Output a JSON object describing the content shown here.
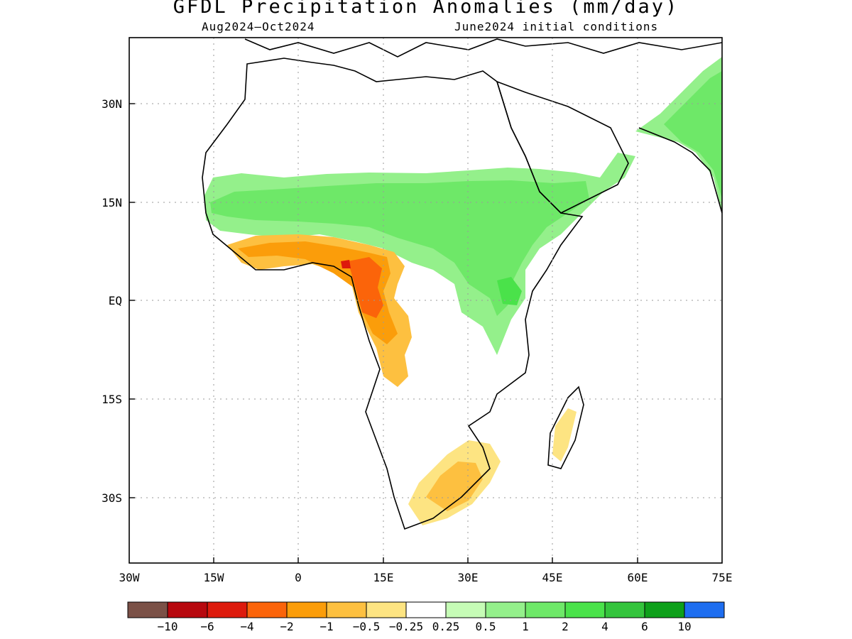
{
  "title": "GFDL Precipitation Anomalies (mm/day)",
  "period": "Aug2024–Oct2024",
  "initial_conditions": "June2024 initial conditions",
  "map": {
    "lon_range": [
      -30,
      75
    ],
    "lat_range": [
      -41,
      40
    ],
    "x_ticks": [
      "30W",
      "15W",
      "0",
      "15E",
      "30E",
      "45E",
      "60E",
      "75E"
    ],
    "y_ticks": [
      "30N",
      "15N",
      "EQ",
      "15S",
      "30S"
    ],
    "gridlines": "dotted"
  },
  "colorbar": {
    "labels": [
      "-10",
      "-6",
      "-4",
      "-2",
      "-1",
      "-0.5",
      "-0.25",
      "0.25",
      "0.5",
      "1",
      "2",
      "4",
      "6",
      "10"
    ],
    "colors": [
      "#7b5147",
      "#b7080e",
      "#dd1a0c",
      "#fb640a",
      "#fb9d0a",
      "#fdc040",
      "#fde482",
      "#ffffff",
      "#c6fcb6",
      "#94f08b",
      "#6ee868",
      "#4ae24a",
      "#34c43c",
      "#0ea01a",
      "#1e6ef0"
    ]
  },
  "regions": [
    {
      "name": "Sahel wet anomaly",
      "level": "0.5 to 2 mm/day"
    },
    {
      "name": "Ethiopian Highlands wet anomaly",
      "level": "1 to 2 mm/day"
    },
    {
      "name": "Gulf of Guinea coast dry anomaly",
      "level": "-1 to -4 mm/day"
    },
    {
      "name": "Cameroon / Gabon / Congo dry anomaly",
      "level": "-2 to -6 mm/day"
    },
    {
      "name": "Angola dry anomaly",
      "level": "-0.5 to -1 mm/day"
    },
    {
      "name": "South Africa dry anomaly",
      "level": "-0.5 to -1 mm/day"
    },
    {
      "name": "Eastern Madagascar dry anomaly",
      "level": "-0.25 to -0.5 mm/day"
    },
    {
      "name": "India / Himalaya wet anomaly",
      "level": "0.5 to 2 mm/day"
    }
  ]
}
